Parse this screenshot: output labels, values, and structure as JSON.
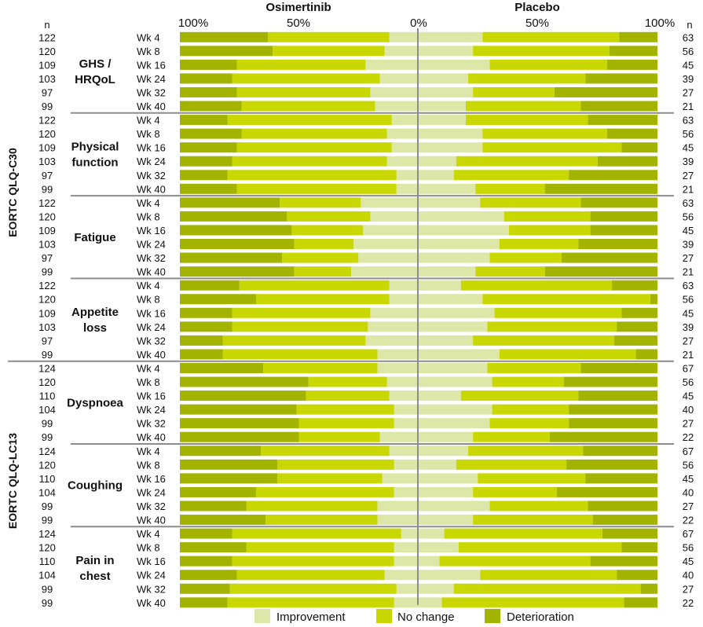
{
  "chart_data": {
    "type": "bar",
    "orientation": "diverging-stacked-horizontal",
    "headers": {
      "left_group": "Osimertinib",
      "right_group": "Placebo",
      "n_left": "n",
      "n_right": "n",
      "ticks": [
        "100%",
        "50%",
        "0%",
        "50%",
        "100%"
      ]
    },
    "legend": [
      {
        "name": "Improvement",
        "color": "#dde7a7"
      },
      {
        "name": "No change",
        "color": "#c9d803"
      },
      {
        "name": "Deterioration",
        "color": "#a2b400"
      }
    ],
    "colors": {
      "improvement": "#dde7a7",
      "no_change": "#c9d803",
      "deterioration": "#a2b400",
      "separator": "#8c8c8c"
    },
    "questionnaires": [
      {
        "name": "EORTC QLQ-C30",
        "domains": [
          0,
          1,
          2,
          3
        ]
      },
      {
        "name": "EORTC QLQ-LC13",
        "domains": [
          4,
          5,
          6
        ]
      }
    ],
    "domains": [
      {
        "lines": [
          "GHS /",
          "HRQoL"
        ],
        "rows": [
          {
            "week": "Wk 4",
            "n_osi": "122",
            "n_pla": "63",
            "osi": [
              12,
              51,
              37
            ],
            "pla": [
              27,
              57,
              16
            ]
          },
          {
            "week": "Wk 8",
            "n_osi": "120",
            "n_pla": "56",
            "osi": [
              14,
              47,
              39
            ],
            "pla": [
              23,
              57,
              20
            ]
          },
          {
            "week": "Wk 16",
            "n_osi": "109",
            "n_pla": "45",
            "osi": [
              22,
              54,
              24
            ],
            "pla": [
              30,
              49,
              21
            ]
          },
          {
            "week": "Wk 24",
            "n_osi": "103",
            "n_pla": "39",
            "osi": [
              16,
              62,
              22
            ],
            "pla": [
              21,
              49,
              30
            ]
          },
          {
            "week": "Wk 32",
            "n_osi": "97",
            "n_pla": "27",
            "osi": [
              20,
              56,
              24
            ],
            "pla": [
              23,
              34,
              43
            ]
          },
          {
            "week": "Wk 40",
            "n_osi": "99",
            "n_pla": "21",
            "osi": [
              18,
              56,
              26
            ],
            "pla": [
              20,
              48,
              32
            ]
          }
        ]
      },
      {
        "lines": [
          "Physical",
          "function"
        ],
        "rows": [
          {
            "week": "Wk 4",
            "n_osi": "122",
            "n_pla": "63",
            "osi": [
              11,
              69,
              20
            ],
            "pla": [
              20,
              51,
              29
            ]
          },
          {
            "week": "Wk 8",
            "n_osi": "120",
            "n_pla": "56",
            "osi": [
              13,
              61,
              26
            ],
            "pla": [
              27,
              52,
              21
            ]
          },
          {
            "week": "Wk 16",
            "n_osi": "109",
            "n_pla": "45",
            "osi": [
              11,
              65,
              24
            ],
            "pla": [
              27,
              58,
              15
            ]
          },
          {
            "week": "Wk 24",
            "n_osi": "103",
            "n_pla": "39",
            "osi": [
              13,
              65,
              22
            ],
            "pla": [
              16,
              59,
              25
            ]
          },
          {
            "week": "Wk 32",
            "n_osi": "97",
            "n_pla": "27",
            "osi": [
              9,
              71,
              20
            ],
            "pla": [
              15,
              48,
              37
            ]
          },
          {
            "week": "Wk 40",
            "n_osi": "99",
            "n_pla": "21",
            "osi": [
              9,
              67,
              24
            ],
            "pla": [
              24,
              29,
              47
            ]
          }
        ]
      },
      {
        "lines": [
          "Fatigue"
        ],
        "rows": [
          {
            "week": "Wk 4",
            "n_osi": "122",
            "n_pla": "63",
            "osi": [
              24,
              34,
              42
            ],
            "pla": [
              26,
              42,
              32
            ]
          },
          {
            "week": "Wk 8",
            "n_osi": "120",
            "n_pla": "56",
            "osi": [
              20,
              35,
              45
            ],
            "pla": [
              36,
              36,
              28
            ]
          },
          {
            "week": "Wk 16",
            "n_osi": "109",
            "n_pla": "45",
            "osi": [
              23,
              30,
              47
            ],
            "pla": [
              38,
              34,
              28
            ]
          },
          {
            "week": "Wk 24",
            "n_osi": "103",
            "n_pla": "39",
            "osi": [
              27,
              25,
              48
            ],
            "pla": [
              34,
              33,
              33
            ]
          },
          {
            "week": "Wk 32",
            "n_osi": "97",
            "n_pla": "27",
            "osi": [
              25,
              32,
              43
            ],
            "pla": [
              30,
              30,
              40
            ]
          },
          {
            "week": "Wk 40",
            "n_osi": "99",
            "n_pla": "21",
            "osi": [
              28,
              24,
              48
            ],
            "pla": [
              24,
              29,
              47
            ]
          }
        ]
      },
      {
        "lines": [
          "Appetite",
          "loss"
        ],
        "rows": [
          {
            "week": "Wk 4",
            "n_osi": "122",
            "n_pla": "63",
            "osi": [
              12,
              63,
              25
            ],
            "pla": [
              18,
              63,
              19
            ]
          },
          {
            "week": "Wk 8",
            "n_osi": "120",
            "n_pla": "56",
            "osi": [
              12,
              56,
              32
            ],
            "pla": [
              27,
              70,
              3
            ]
          },
          {
            "week": "Wk 16",
            "n_osi": "109",
            "n_pla": "45",
            "osi": [
              20,
              58,
              22
            ],
            "pla": [
              32,
              53,
              15
            ]
          },
          {
            "week": "Wk 24",
            "n_osi": "103",
            "n_pla": "39",
            "osi": [
              21,
              57,
              22
            ],
            "pla": [
              29,
              54,
              17
            ]
          },
          {
            "week": "Wk 32",
            "n_osi": "97",
            "n_pla": "27",
            "osi": [
              22,
              60,
              18
            ],
            "pla": [
              23,
              59,
              18
            ]
          },
          {
            "week": "Wk 40",
            "n_osi": "99",
            "n_pla": "21",
            "osi": [
              17,
              65,
              18
            ],
            "pla": [
              34,
              57,
              9
            ]
          }
        ]
      },
      {
        "lines": [
          "Dyspnoea"
        ],
        "rows": [
          {
            "week": "Wk 4",
            "n_osi": "124",
            "n_pla": "67",
            "osi": [
              17,
              48,
              35
            ],
            "pla": [
              29,
              39,
              32
            ]
          },
          {
            "week": "Wk 8",
            "n_osi": "120",
            "n_pla": "56",
            "osi": [
              13,
              33,
              54
            ],
            "pla": [
              31,
              30,
              39
            ]
          },
          {
            "week": "Wk 16",
            "n_osi": "110",
            "n_pla": "45",
            "osi": [
              12,
              35,
              53
            ],
            "pla": [
              18,
              49,
              33
            ]
          },
          {
            "week": "Wk 24",
            "n_osi": "104",
            "n_pla": "40",
            "osi": [
              10,
              41,
              49
            ],
            "pla": [
              31,
              32,
              37
            ]
          },
          {
            "week": "Wk 32",
            "n_osi": "99",
            "n_pla": "27",
            "osi": [
              10,
              40,
              50
            ],
            "pla": [
              30,
              33,
              37
            ]
          },
          {
            "week": "Wk 40",
            "n_osi": "99",
            "n_pla": "22",
            "osi": [
              16,
              34,
              50
            ],
            "pla": [
              23,
              32,
              45
            ]
          }
        ]
      },
      {
        "lines": [
          "Coughing"
        ],
        "rows": [
          {
            "week": "Wk 4",
            "n_osi": "124",
            "n_pla": "67",
            "osi": [
              12,
              54,
              34
            ],
            "pla": [
              21,
              48,
              31
            ]
          },
          {
            "week": "Wk 8",
            "n_osi": "120",
            "n_pla": "56",
            "osi": [
              10,
              49,
              41
            ],
            "pla": [
              16,
              46,
              38
            ]
          },
          {
            "week": "Wk 16",
            "n_osi": "110",
            "n_pla": "45",
            "osi": [
              15,
              44,
              41
            ],
            "pla": [
              25,
              45,
              30
            ]
          },
          {
            "week": "Wk 24",
            "n_osi": "104",
            "n_pla": "40",
            "osi": [
              10,
              58,
              32
            ],
            "pla": [
              23,
              35,
              42
            ]
          },
          {
            "week": "Wk 32",
            "n_osi": "99",
            "n_pla": "27",
            "osi": [
              17,
              55,
              28
            ],
            "pla": [
              30,
              41,
              29
            ]
          },
          {
            "week": "Wk 40",
            "n_osi": "99",
            "n_pla": "22",
            "osi": [
              17,
              47,
              36
            ],
            "pla": [
              23,
              50,
              27
            ]
          }
        ]
      },
      {
        "lines": [
          "Pain in",
          "chest"
        ],
        "rows": [
          {
            "week": "Wk 4",
            "n_osi": "124",
            "n_pla": "67",
            "osi": [
              7,
              71,
              22
            ],
            "pla": [
              11,
              66,
              23
            ]
          },
          {
            "week": "Wk 8",
            "n_osi": "120",
            "n_pla": "56",
            "osi": [
              10,
              62,
              28
            ],
            "pla": [
              17,
              68,
              15
            ]
          },
          {
            "week": "Wk 16",
            "n_osi": "110",
            "n_pla": "45",
            "osi": [
              10,
              68,
              22
            ],
            "pla": [
              9,
              63,
              28
            ]
          },
          {
            "week": "Wk 24",
            "n_osi": "104",
            "n_pla": "40",
            "osi": [
              14,
              62,
              24
            ],
            "pla": [
              26,
              57,
              17
            ]
          },
          {
            "week": "Wk 32",
            "n_osi": "99",
            "n_pla": "27",
            "osi": [
              9,
              70,
              21
            ],
            "pla": [
              15,
              78,
              7
            ]
          },
          {
            "week": "Wk 40",
            "n_osi": "99",
            "n_pla": "22",
            "osi": [
              10,
              70,
              20
            ],
            "pla": [
              10,
              76,
              14
            ]
          }
        ]
      }
    ]
  }
}
